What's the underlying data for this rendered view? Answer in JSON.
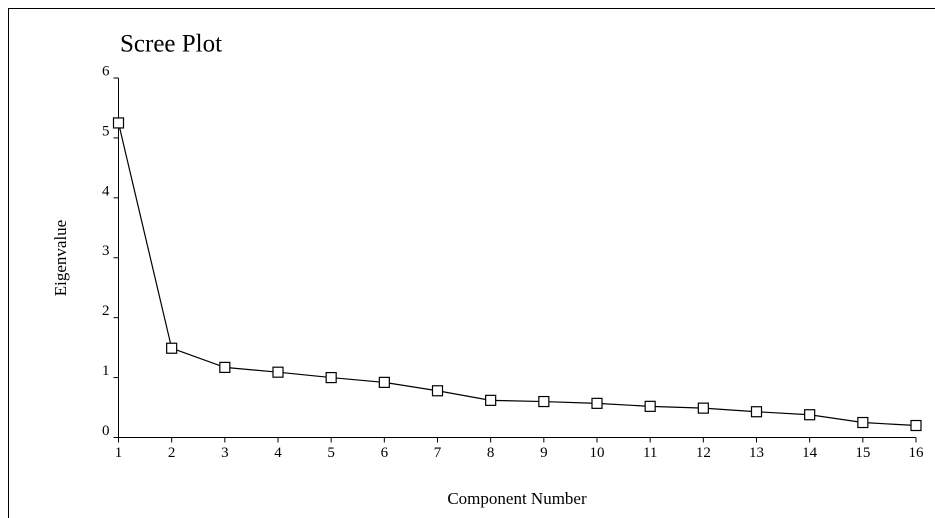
{
  "chart_data": {
    "type": "line",
    "title": "Scree Plot",
    "x_label": "Component Number",
    "y_label": "Eigenvalue",
    "x": [
      1,
      2,
      3,
      4,
      5,
      6,
      7,
      8,
      9,
      10,
      11,
      12,
      13,
      14,
      15,
      16
    ],
    "values": [
      5.25,
      1.49,
      1.17,
      1.09,
      1.0,
      0.92,
      0.78,
      0.62,
      0.6,
      0.57,
      0.52,
      0.49,
      0.43,
      0.38,
      0.25,
      0.2
    ],
    "color": "#000000",
    "xlim": [
      1,
      16
    ],
    "xticks": [
      1,
      2,
      3,
      4,
      5,
      6,
      7,
      8,
      9,
      10,
      11,
      12,
      13,
      14,
      15,
      16
    ],
    "ylim": [
      0,
      6
    ],
    "yticks": [
      0,
      1,
      2,
      3,
      4,
      5,
      6
    ],
    "grid": false
  }
}
